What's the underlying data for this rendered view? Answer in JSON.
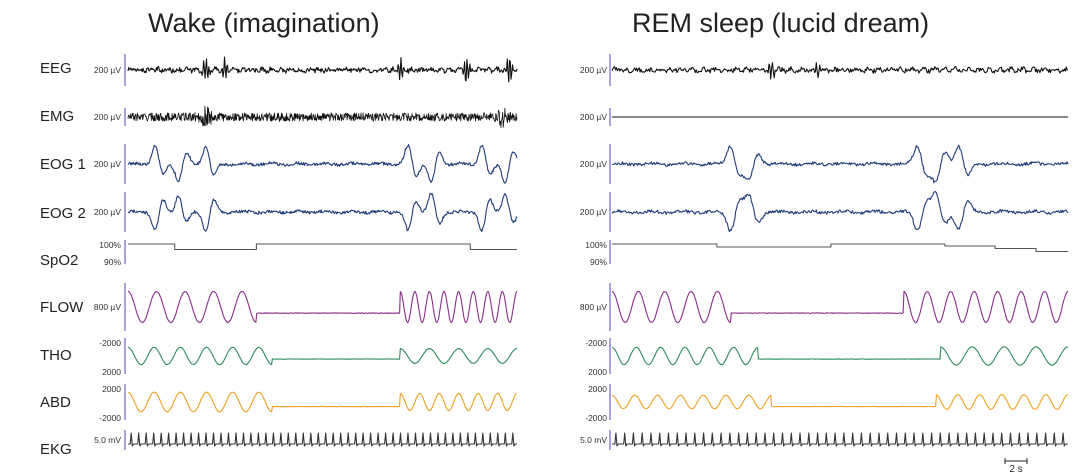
{
  "chart_data": [
    {
      "type": "line",
      "title": "Wake (imagination)",
      "channels": [
        {
          "name": "EEG",
          "scale": "200 µV",
          "color": "#111111",
          "waveform": "eeg",
          "events": [
            {
              "t": 0.2,
              "amp": 0.9
            },
            {
              "t": 0.25,
              "amp": -0.8
            },
            {
              "t": 0.7,
              "amp": 0.8
            },
            {
              "t": 0.87,
              "amp": 1.0
            },
            {
              "t": 0.98,
              "amp": 1.0
            }
          ]
        },
        {
          "name": "EMG",
          "scale": "200 µV",
          "color": "#111111",
          "waveform": "emg",
          "events": [
            {
              "t": 0.2,
              "amp": 1.0
            },
            {
              "t": 0.96,
              "amp": 1.0
            }
          ]
        },
        {
          "name": "EOG 1",
          "scale": "200 µV",
          "color": "#1f3c7a",
          "waveform": "eog",
          "events": [
            {
              "t": 0.07,
              "amp": 1.0
            },
            {
              "t": 0.13,
              "amp": -0.9
            },
            {
              "t": 0.2,
              "amp": 1.0
            },
            {
              "t": 0.72,
              "amp": 1.0
            },
            {
              "t": 0.78,
              "amp": -1.0
            },
            {
              "t": 0.91,
              "amp": 1.0
            },
            {
              "t": 0.97,
              "amp": -1.0
            }
          ]
        },
        {
          "name": "EOG 2",
          "scale": "200 µV",
          "color": "#1f3c7a",
          "waveform": "eog",
          "events": [
            {
              "t": 0.07,
              "amp": -1.0
            },
            {
              "t": 0.13,
              "amp": 0.9
            },
            {
              "t": 0.2,
              "amp": -1.0
            },
            {
              "t": 0.72,
              "amp": -1.0
            },
            {
              "t": 0.78,
              "amp": 1.0
            },
            {
              "t": 0.91,
              "amp": -1.0
            },
            {
              "t": 0.97,
              "amp": 1.0
            }
          ]
        },
        {
          "name": "SpO2",
          "scale_top": "100%",
          "scale_bottom": "90%",
          "color": "#555555",
          "waveform": "step",
          "steps": [
            [
              0.0,
              0.0
            ],
            [
              0.12,
              0.55
            ],
            [
              0.33,
              0.0
            ],
            [
              0.88,
              0.55
            ],
            [
              0.97,
              0.55
            ]
          ]
        },
        {
          "name": "FLOW",
          "scale": "800 µV",
          "color": "#8a2e8a",
          "waveform": "resp",
          "resp_segments": [
            [
              0.0,
              0.33,
              4.5,
              0.95
            ],
            [
              0.33,
              0.7,
              0.0,
              0.0
            ],
            [
              0.7,
              1.0,
              8.0,
              0.95
            ]
          ],
          "baseline": 0.3
        },
        {
          "name": "THO",
          "scale_top": "-2000",
          "scale_bottom": "2000",
          "color": "#2e8a5e",
          "waveform": "resp",
          "resp_segments": [
            [
              0.0,
              0.37,
              5.5,
              0.7
            ],
            [
              0.37,
              0.7,
              0.0,
              0.0
            ],
            [
              0.7,
              1.0,
              4.0,
              0.6
            ]
          ],
          "baseline": 0.2
        },
        {
          "name": "ABD",
          "scale_top": "2000",
          "scale_bottom": "-2000",
          "color": "#f0a020",
          "waveform": "resp",
          "resp_segments": [
            [
              0.0,
              0.37,
              5.5,
              0.8
            ],
            [
              0.37,
              0.7,
              0.0,
              0.0
            ],
            [
              0.7,
              1.0,
              6.0,
              0.7
            ]
          ],
          "baseline": 0.3
        },
        {
          "name": "EKG",
          "scale": "5.0 mV",
          "color": "#333333",
          "waveform": "ekg",
          "beats": 52
        }
      ]
    },
    {
      "type": "line",
      "title": "REM sleep (lucid dream)",
      "channels": [
        {
          "name": "EEG",
          "scale": "200 µV",
          "color": "#111111",
          "waveform": "eeg",
          "events": [
            {
              "t": 0.35,
              "amp": 0.6
            },
            {
              "t": 0.45,
              "amp": -0.6
            }
          ]
        },
        {
          "name": "EMG",
          "scale": "200 µV",
          "color": "#111111",
          "waveform": "flat"
        },
        {
          "name": "EOG 1",
          "scale": "200 µV",
          "color": "#1f3c7a",
          "waveform": "eog",
          "events": [
            {
              "t": 0.26,
              "amp": 1.0
            },
            {
              "t": 0.3,
              "amp": -0.9
            },
            {
              "t": 0.67,
              "amp": 1.0
            },
            {
              "t": 0.71,
              "amp": -1.0
            },
            {
              "t": 0.76,
              "amp": 1.0
            }
          ]
        },
        {
          "name": "EOG 2",
          "scale": "200 µV",
          "color": "#1f3c7a",
          "waveform": "eog",
          "events": [
            {
              "t": 0.26,
              "amp": -1.0
            },
            {
              "t": 0.3,
              "amp": 0.9
            },
            {
              "t": 0.67,
              "amp": -1.0
            },
            {
              "t": 0.71,
              "amp": 1.0
            },
            {
              "t": 0.76,
              "amp": -0.9
            }
          ]
        },
        {
          "name": "SpO2",
          "scale_top": "100%",
          "scale_bottom": "90%",
          "color": "#555555",
          "waveform": "step",
          "steps": [
            [
              0.0,
              0.0
            ],
            [
              0.23,
              0.3
            ],
            [
              0.48,
              0.0
            ],
            [
              0.73,
              0.2
            ],
            [
              0.84,
              0.45
            ],
            [
              0.93,
              0.75
            ]
          ]
        },
        {
          "name": "FLOW",
          "scale": "800 µV",
          "color": "#8a2e8a",
          "waveform": "resp",
          "resp_segments": [
            [
              0.0,
              0.26,
              4.5,
              0.95
            ],
            [
              0.26,
              0.64,
              0.0,
              0.0
            ],
            [
              0.64,
              1.0,
              7.0,
              0.95
            ]
          ],
          "baseline": 0.3
        },
        {
          "name": "THO",
          "scale_top": "-2000",
          "scale_bottom": "2000",
          "color": "#2e8a5e",
          "waveform": "resp",
          "resp_segments": [
            [
              0.0,
              0.32,
              6.0,
              0.7
            ],
            [
              0.32,
              0.72,
              0.0,
              0.0
            ],
            [
              0.72,
              1.0,
              4.0,
              0.75
            ]
          ],
          "baseline": 0.2
        },
        {
          "name": "ABD",
          "scale_top": "2000",
          "scale_bottom": "-2000",
          "color": "#f0a020",
          "waveform": "resp",
          "resp_segments": [
            [
              0.0,
              0.35,
              7.0,
              0.55
            ],
            [
              0.35,
              0.71,
              0.0,
              0.0
            ],
            [
              0.71,
              1.0,
              6.0,
              0.6
            ]
          ],
          "baseline": 0.3
        },
        {
          "name": "EKG",
          "scale": "5.0 mV",
          "color": "#333333",
          "waveform": "ekg",
          "beats": 52
        }
      ],
      "scale_bar": {
        "label": "2 s"
      }
    }
  ]
}
